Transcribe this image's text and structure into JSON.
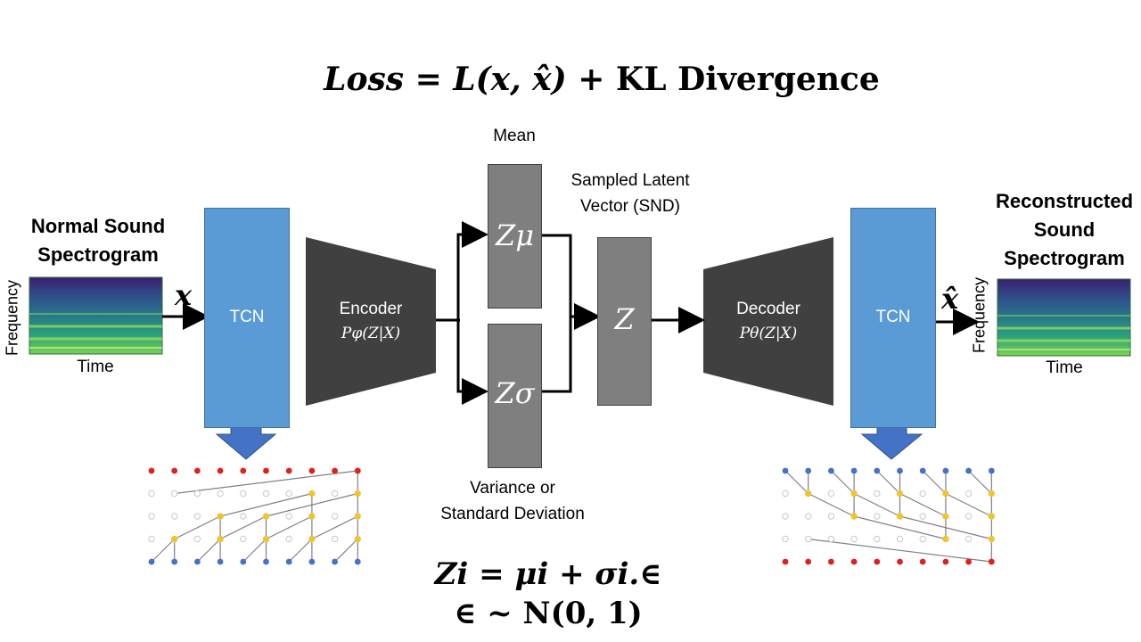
{
  "title": {
    "loss_label": "Loss",
    "equals": "=",
    "loss_term": "L(x, x̂)",
    "plus": "+",
    "kl_term": "KL Divergence"
  },
  "input": {
    "title_line1": "Normal Sound",
    "title_line2": "Spectrogram",
    "y_axis": "Frequency",
    "x_axis": "Time",
    "symbol": "x"
  },
  "output": {
    "title_line1": "Reconstructed",
    "title_line2": "Sound",
    "title_line3": "Spectrogram",
    "y_axis": "Frequency",
    "x_axis": "Time",
    "symbol": "x̂"
  },
  "tcn_left": {
    "label": "TCN"
  },
  "tcn_right": {
    "label": "TCN"
  },
  "encoder": {
    "label": "Encoder",
    "formula": "Pφ(Z|X)"
  },
  "decoder": {
    "label": "Decoder",
    "formula": "Pθ(Z|X)"
  },
  "latent": {
    "mean_caption": "Mean",
    "z_mu": "Zμ",
    "z_sigma": "Zσ",
    "variance_line1": "Variance or",
    "variance_line2": "Standard Deviation",
    "sampled_line1": "Sampled Latent",
    "sampled_line2": "Vector (SND)",
    "z": "Z"
  },
  "bottom_formula": {
    "line1": "Zi = μi +  σi.∈",
    "line2": "∈ ~ N(0, 1)"
  },
  "colors": {
    "tcn_blue": "#5b9bd5",
    "arrow_blue": "#4472c4",
    "dark_gray": "#404040",
    "box_gray": "#7f7f7f",
    "node_red": "#e02020",
    "node_yellow": "#f5c518",
    "node_blue": "#4472c4",
    "node_empty": "#c8c8c8"
  }
}
